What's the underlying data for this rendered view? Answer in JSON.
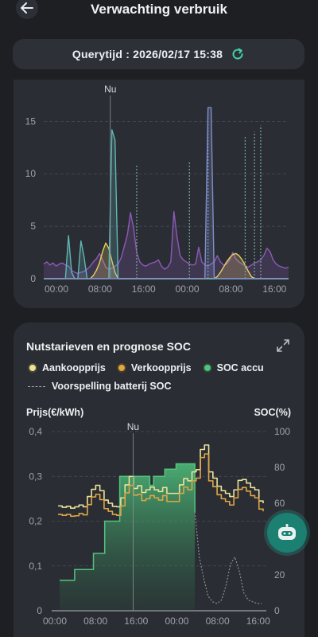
{
  "header": {
    "title": "Verwachting verbruik",
    "back_icon": "arrow-left-icon"
  },
  "query": {
    "label": "Querytijd : 2026/02/17 15:38",
    "refresh_icon": "refresh-icon",
    "refresh_color": "#3fd3a8"
  },
  "chart_data": [
    {
      "type": "area",
      "marker_label": "Nu",
      "marker_x": "16:00",
      "y_ticks": [
        "0",
        "5",
        "10",
        "15"
      ],
      "x_ticks": [
        "00:00",
        "08:00",
        "16:00",
        "00:00",
        "08:00",
        "16:00"
      ],
      "ylim": [
        0,
        17
      ],
      "grid": true,
      "series": [
        {
          "color": "#8c5ab8",
          "values": [
            1.4,
            1.6,
            1.3,
            1.5,
            1.2,
            1.4,
            1.5,
            1.3,
            1.2,
            0.8,
            0.6,
            0.5,
            0.6,
            0.7,
            0.9,
            1.2,
            1.6,
            1.9,
            2.4,
            1.8,
            1.1,
            0.9,
            1.0,
            1.2,
            1.4,
            2.0,
            3.1,
            4.2,
            6.3,
            4.8,
            2.5,
            1.6,
            1.3,
            1.2,
            1.4,
            1.5,
            1.6,
            1.8,
            1.2,
            0.9,
            1.1,
            1.6,
            6.4,
            4.0,
            2.2,
            1.8,
            1.6,
            1.4,
            1.3,
            1.4,
            3.0,
            1.6,
            1.3,
            1.2,
            1.4,
            1.6,
            2.2,
            1.6,
            1.3,
            1.4,
            1.8,
            2.5,
            1.9,
            1.6,
            1.4,
            1.2,
            1.1,
            1.3,
            1.5,
            1.6,
            1.8,
            2.2,
            2.9,
            2.6,
            1.8,
            1.4,
            1.2,
            1.1,
            1.0,
            1.1
          ]
        },
        {
          "color": "#e6cf63",
          "values": [
            0,
            0,
            0,
            0,
            0,
            0,
            0,
            0,
            0,
            0,
            0,
            0,
            0,
            0,
            0,
            0,
            0.3,
            0.8,
            1.5,
            2.6,
            3.4,
            2.9,
            1.7,
            0.6,
            0,
            0,
            0,
            0,
            0,
            0,
            0,
            0,
            0,
            0,
            0,
            0,
            0,
            0,
            0,
            0,
            0,
            0,
            0,
            0,
            0,
            0,
            0,
            0,
            0,
            0,
            0,
            0,
            0,
            0,
            0,
            0,
            0.2,
            0.6,
            1.1,
            1.6,
            2.0,
            2.3,
            2.4,
            2.2,
            1.8,
            1.3,
            0.7,
            0.2,
            0,
            0,
            0,
            0,
            0,
            0,
            0,
            0,
            0,
            0,
            0,
            0
          ]
        },
        {
          "color": "#61b6b6",
          "values": [
            0,
            0,
            0,
            0,
            0,
            0,
            0,
            0,
            4.1,
            0.6,
            0,
            0,
            3.6,
            2.1,
            0,
            0,
            0,
            0,
            0,
            0,
            0,
            0,
            14.2,
            13.2,
            0,
            0,
            0,
            0,
            0,
            0,
            0,
            0,
            0,
            0,
            0,
            0,
            0,
            0,
            0,
            0,
            0,
            0,
            0,
            0,
            0,
            0,
            0,
            0,
            0,
            0,
            0,
            0,
            0,
            0,
            0,
            0,
            0,
            0,
            0,
            0,
            0,
            0,
            0,
            0,
            0,
            0,
            0,
            0,
            0,
            0,
            0,
            0,
            0,
            0,
            0,
            0,
            0,
            0,
            0,
            0
          ]
        },
        {
          "color": "#7f8fc8",
          "values": [
            0,
            0,
            0,
            0,
            0,
            0,
            0,
            0,
            0,
            0,
            0,
            0,
            0,
            0,
            0,
            0,
            0,
            0,
            0,
            0,
            0,
            0,
            0,
            0,
            0,
            0,
            0,
            0,
            0,
            0,
            0,
            0,
            0,
            0,
            0,
            0,
            0,
            0,
            0,
            0,
            0,
            0,
            0,
            0,
            0,
            0,
            0,
            0,
            0,
            0,
            0,
            0,
            0,
            16.3,
            16.3,
            0,
            0,
            0,
            0,
            0,
            0,
            0,
            0,
            0,
            0,
            0,
            0,
            0,
            0,
            0,
            0,
            0,
            0,
            0,
            0,
            0,
            0,
            0,
            0,
            0
          ]
        }
      ],
      "dotted_spikes": [
        {
          "x_index": 30,
          "value": 10.8,
          "color": "#6fa08c"
        },
        {
          "x_index": 47,
          "value": 11.2,
          "color": "#6fa08c"
        },
        {
          "x_index": 53,
          "value": 16.3,
          "color": "#7f8fc8"
        },
        {
          "x_index": 65,
          "value": 13.5,
          "color": "#6fa08c"
        },
        {
          "x_index": 68,
          "value": 14.0,
          "color": "#6fa08c"
        },
        {
          "x_index": 70,
          "value": 14.6,
          "color": "#6fa08c"
        }
      ]
    },
    {
      "type": "line",
      "title": "Nutstarieven en prognose SOC",
      "marker_label": "Nu",
      "marker_x": "16:00",
      "xlabel": "",
      "ylabel": "Prijs(€/kWh)",
      "ylabel_right": "SOC(%)",
      "y_ticks": [
        "0",
        "0,1",
        "0,2",
        "0,3",
        "0,4"
      ],
      "y_ticks_right": [
        "0",
        "20",
        "40",
        "60",
        "80",
        "100"
      ],
      "x_ticks": [
        "00:00",
        "08:00",
        "16:00",
        "00:00",
        "08:00",
        "16:00"
      ],
      "ylim": [
        0,
        0.4
      ],
      "ylim_right": [
        0,
        100
      ],
      "grid": true,
      "series": [
        {
          "name": "Aankoopprijs",
          "color": "#ece39a",
          "values": [
            0.234,
            0.231,
            0.233,
            0.229,
            0.232,
            0.236,
            0.232,
            0.255,
            0.271,
            0.28,
            0.268,
            0.247,
            0.24,
            0.233,
            0.232,
            0.252,
            0.281,
            0.3,
            0.273,
            0.279,
            0.264,
            0.27,
            0.276,
            0.27,
            0.266,
            0.275,
            0.262,
            0.262,
            0.262,
            0.281,
            0.295,
            0.29,
            0.31,
            0.315,
            0.36,
            0.37,
            0.31,
            0.296,
            0.278,
            0.268,
            0.262,
            0.255,
            0.27,
            0.291,
            0.293,
            0.285,
            0.275,
            0.27,
            0.245,
            0.24
          ]
        },
        {
          "name": "Verkoopprijs",
          "color": "#e0a646",
          "values": [
            0.215,
            0.213,
            0.215,
            0.211,
            0.212,
            0.217,
            0.214,
            0.237,
            0.254,
            0.26,
            0.248,
            0.228,
            0.222,
            0.215,
            0.213,
            0.234,
            0.263,
            0.28,
            0.258,
            0.26,
            0.246,
            0.25,
            0.257,
            0.252,
            0.247,
            0.257,
            0.244,
            0.244,
            0.244,
            0.262,
            0.276,
            0.27,
            0.29,
            0.296,
            0.342,
            0.35,
            0.29,
            0.277,
            0.259,
            0.25,
            0.244,
            0.236,
            0.252,
            0.271,
            0.275,
            0.267,
            0.257,
            0.252,
            0.227,
            0.222
          ]
        },
        {
          "name": "SOC accu",
          "color": "#54c27e",
          "values": [
            17,
            17,
            17,
            17,
            23,
            23,
            23,
            23,
            23,
            32,
            32,
            32,
            50,
            50,
            50,
            50,
            75,
            75,
            75,
            75,
            75,
            75,
            75,
            75,
            70,
            75,
            75,
            75,
            79,
            79,
            79,
            82,
            82,
            82,
            82,
            82,
            55
          ]
        },
        {
          "name": "Voorspelling batterij SOC",
          "color": "#8a8f96",
          "dashed": true,
          "values": [
            55,
            30,
            18,
            8,
            5,
            4,
            6,
            14,
            26,
            30,
            22,
            10,
            6,
            5,
            4,
            4
          ]
        }
      ]
    }
  ],
  "card2": {
    "title": "Nutstarieven en prognose SOC",
    "expand_icon": "expand-icon",
    "legend": [
      {
        "label": "Aankoopprijs",
        "color": "#ece39a"
      },
      {
        "label": "Verkoopprijs",
        "color": "#e0a646"
      },
      {
        "label": "SOC accu",
        "color": "#54c27e"
      }
    ],
    "legend_dashed": "Voorspelling batterij SOC",
    "axis_left": "Prijs(€/kWh)",
    "axis_right": "SOC(%)"
  },
  "fab": {
    "icon": "robot-assistant-icon",
    "color": "#1b7f72"
  }
}
